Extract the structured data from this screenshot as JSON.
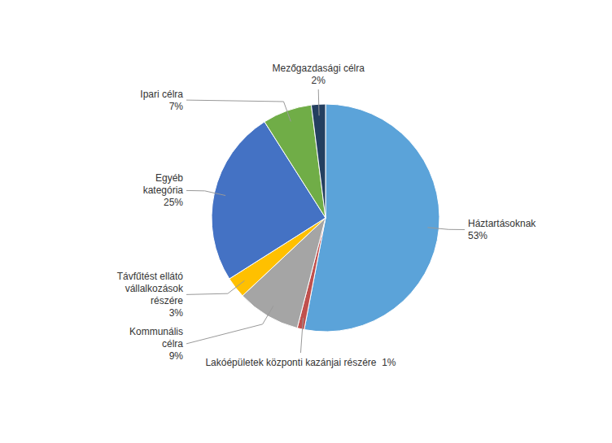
{
  "chart_data": {
    "type": "pie",
    "categories": [
      "Háztartásoknak\n53%",
      "Lakóépületek központi kazánjai részére  1%",
      "Kommunális\ncélra\n9%",
      "Távfűtést ellátó\nvállalkozások\nrészére\n3%",
      "Egyéb\nkategória\n25%",
      "Ipari célra\n7%",
      "Mezőgazdasági célra\n2%"
    ],
    "values": [
      53,
      1,
      9,
      3,
      25,
      7,
      2
    ],
    "colors": [
      "#5ba3d9",
      "#c0504d",
      "#a5a5a5",
      "#ffc000",
      "#4472c4",
      "#70ad47",
      "#243f60"
    ]
  }
}
